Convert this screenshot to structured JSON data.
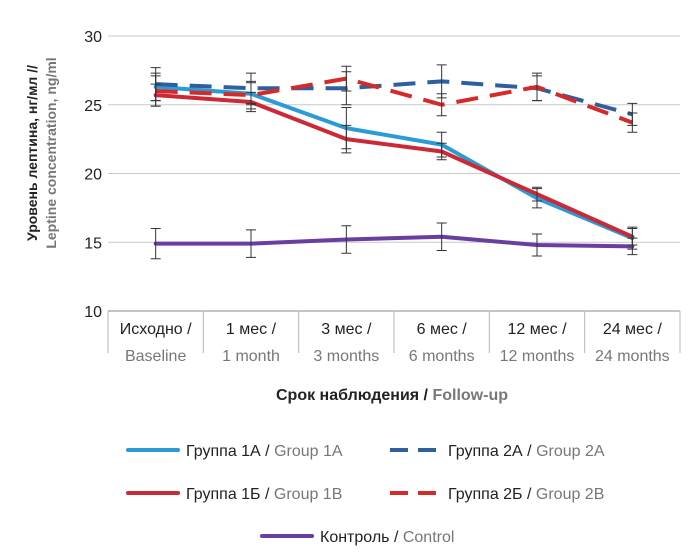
{
  "chart_data": {
    "type": "line",
    "categories": [
      {
        "ru": "Исходно /",
        "en": "Baseline"
      },
      {
        "ru": "1 мес /",
        "en": "1 month"
      },
      {
        "ru": "3 мес /",
        "en": "3 months"
      },
      {
        "ru": "6 мес /",
        "en": "6 months"
      },
      {
        "ru": "12 мес /",
        "en": "12 months"
      },
      {
        "ru": "24 мес /",
        "en": "24 months"
      }
    ],
    "ylabel": {
      "ru": "Уровень лептина, нг/мл //",
      "en": "Leptine concentration, ng/ml"
    },
    "xlabel": {
      "ru": "Срок наблюдения /",
      "en": "Follow-up"
    },
    "ylim": [
      10,
      30
    ],
    "yticks": [
      10,
      15,
      20,
      25,
      30
    ],
    "grid": "horizontal",
    "legend_position": "bottom",
    "series": [
      {
        "name_ru": "Группа 1А",
        "name_en": "Group 1A",
        "color": "#2b9bd6",
        "dash": "solid",
        "values": [
          26.3,
          25.8,
          23.3,
          22.1,
          18.2,
          15.3
        ],
        "errors": [
          1.0,
          0.8,
          1.5,
          0.9,
          0.7,
          0.8
        ]
      },
      {
        "name_ru": "Группа 2А",
        "name_en": "Group 2A",
        "color": "#2e5f9e",
        "dash": "dashed",
        "values": [
          26.5,
          26.2,
          26.2,
          26.7,
          26.2,
          24.3
        ],
        "errors": [
          1.2,
          1.1,
          1.2,
          1.2,
          0.9,
          0.8
        ]
      },
      {
        "name_ru": "Группа 1Б",
        "name_en": "Group 1B",
        "color": "#cc2936",
        "dash": "solid",
        "values": [
          25.7,
          25.2,
          22.5,
          21.6,
          18.5,
          15.4
        ],
        "errors": [
          0.8,
          0.7,
          1.0,
          0.6,
          0.5,
          0.6
        ]
      },
      {
        "name_ru": "Группа 2Б",
        "name_en": "Group 2B",
        "color": "#d42a2a",
        "dash": "dashed",
        "values": [
          26.0,
          25.7,
          26.9,
          25.0,
          26.3,
          23.7
        ],
        "errors": [
          1.1,
          1.0,
          0.9,
          0.8,
          1.0,
          0.7
        ]
      },
      {
        "name_ru": "Контроль",
        "name_en": "Control",
        "color": "#6a3ea1",
        "dash": "solid",
        "values": [
          14.9,
          14.9,
          15.2,
          15.4,
          14.8,
          14.7
        ],
        "errors": [
          1.1,
          1.0,
          1.0,
          1.0,
          0.8,
          0.6
        ]
      }
    ]
  }
}
